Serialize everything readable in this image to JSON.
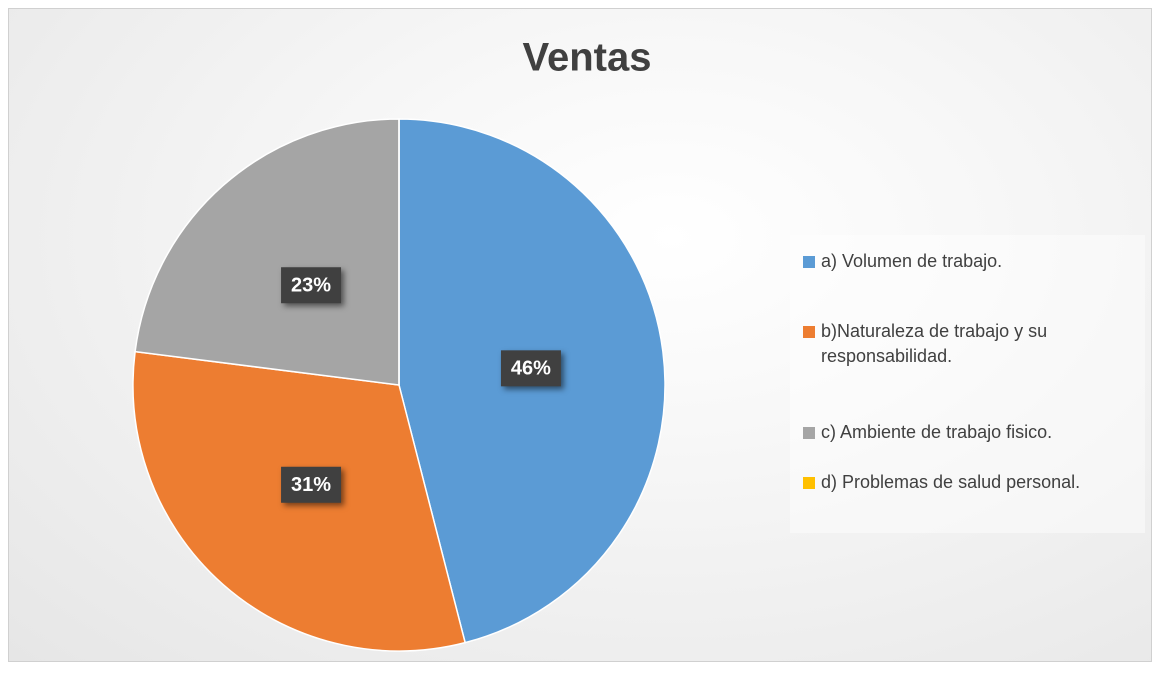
{
  "chart_data": {
    "type": "pie",
    "title": "Ventas",
    "categories": [
      "a) Volumen de trabajo.",
      "b)Naturaleza de trabajo y su responsabilidad.",
      "c) Ambiente de trabajo fisico.",
      "d) Problemas de salud personal."
    ],
    "values": [
      46,
      31,
      23,
      0
    ],
    "value_labels": [
      "46%",
      "31%",
      "23%",
      null
    ],
    "colors": [
      "#5b9bd5",
      "#ed7d31",
      "#a5a5a5",
      "#ffc000"
    ],
    "legend": "right"
  }
}
